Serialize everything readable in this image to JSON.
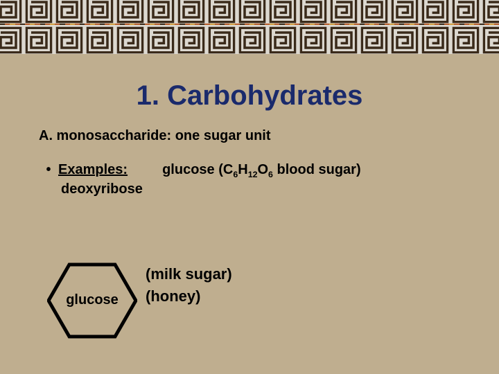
{
  "colors": {
    "background": "#bfae8f",
    "border_bg": "#dcd8d0",
    "title": "#1a2a6c",
    "text": "#000000",
    "key_dark": "#3a2a1a",
    "key_orange": "#b85c2a",
    "key_gold": "#d4a040"
  },
  "title": "1.  Carbohydrates",
  "subheading": "A. monosaccharide:  one sugar unit",
  "bullet": {
    "label": "Examples:",
    "first_example_prefix": "glucose (C",
    "first_example_sub1": "6",
    "first_example_mid1": "H",
    "first_example_sub2": "12",
    "first_example_mid2": "O",
    "first_example_sub3": "6",
    "first_example_suffix": " blood sugar)",
    "second_line": "deoxyribose"
  },
  "hexagon": {
    "label": "glucose",
    "stroke": "#000000",
    "stroke_width": 4
  },
  "notes": {
    "line1": "(milk sugar)",
    "line2": "(honey)"
  },
  "typography": {
    "title_fontsize": 40,
    "body_fontsize": 20,
    "notes_fontsize": 22,
    "font_family": "Arial"
  }
}
